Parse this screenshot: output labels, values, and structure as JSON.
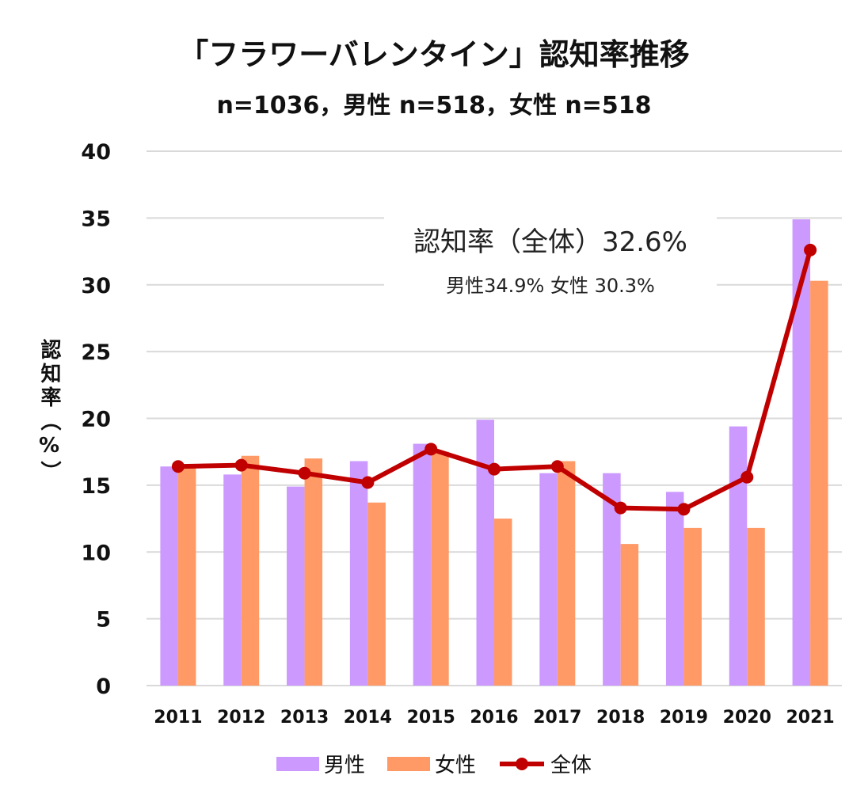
{
  "chart_data": {
    "type": "bar",
    "title": "「フラワーバレンタイン」認知率推移",
    "subtitle": "n=1036，男性 n=518，女性 n=518",
    "ylabel": "認知率（%）",
    "xlabel": "",
    "ylim": [
      0,
      40
    ],
    "yticks": [
      0,
      5,
      10,
      15,
      20,
      25,
      30,
      35,
      40
    ],
    "grid": true,
    "legend_position": "bottom",
    "categories": [
      "2011",
      "2012",
      "2013",
      "2014",
      "2015",
      "2016",
      "2017",
      "2018",
      "2019",
      "2020",
      "2021"
    ],
    "series": [
      {
        "name": "男性",
        "type": "bar",
        "color": "#cc99ff",
        "values": [
          16.4,
          15.8,
          14.9,
          16.8,
          18.1,
          19.9,
          15.9,
          15.9,
          14.5,
          19.4,
          34.9
        ]
      },
      {
        "name": "女性",
        "type": "bar",
        "color": "#ff9966",
        "values": [
          16.3,
          17.2,
          17.0,
          13.7,
          17.5,
          12.5,
          16.8,
          10.6,
          11.8,
          11.8,
          30.3
        ]
      },
      {
        "name": "全体",
        "type": "line",
        "color": "#c00000",
        "values": [
          16.4,
          16.5,
          15.9,
          15.2,
          17.7,
          16.2,
          16.4,
          13.3,
          13.2,
          15.6,
          32.6
        ]
      }
    ],
    "annotation": {
      "line1": "認知率（全体）32.6%",
      "line2": "男性34.9%  女性 30.3%"
    }
  }
}
